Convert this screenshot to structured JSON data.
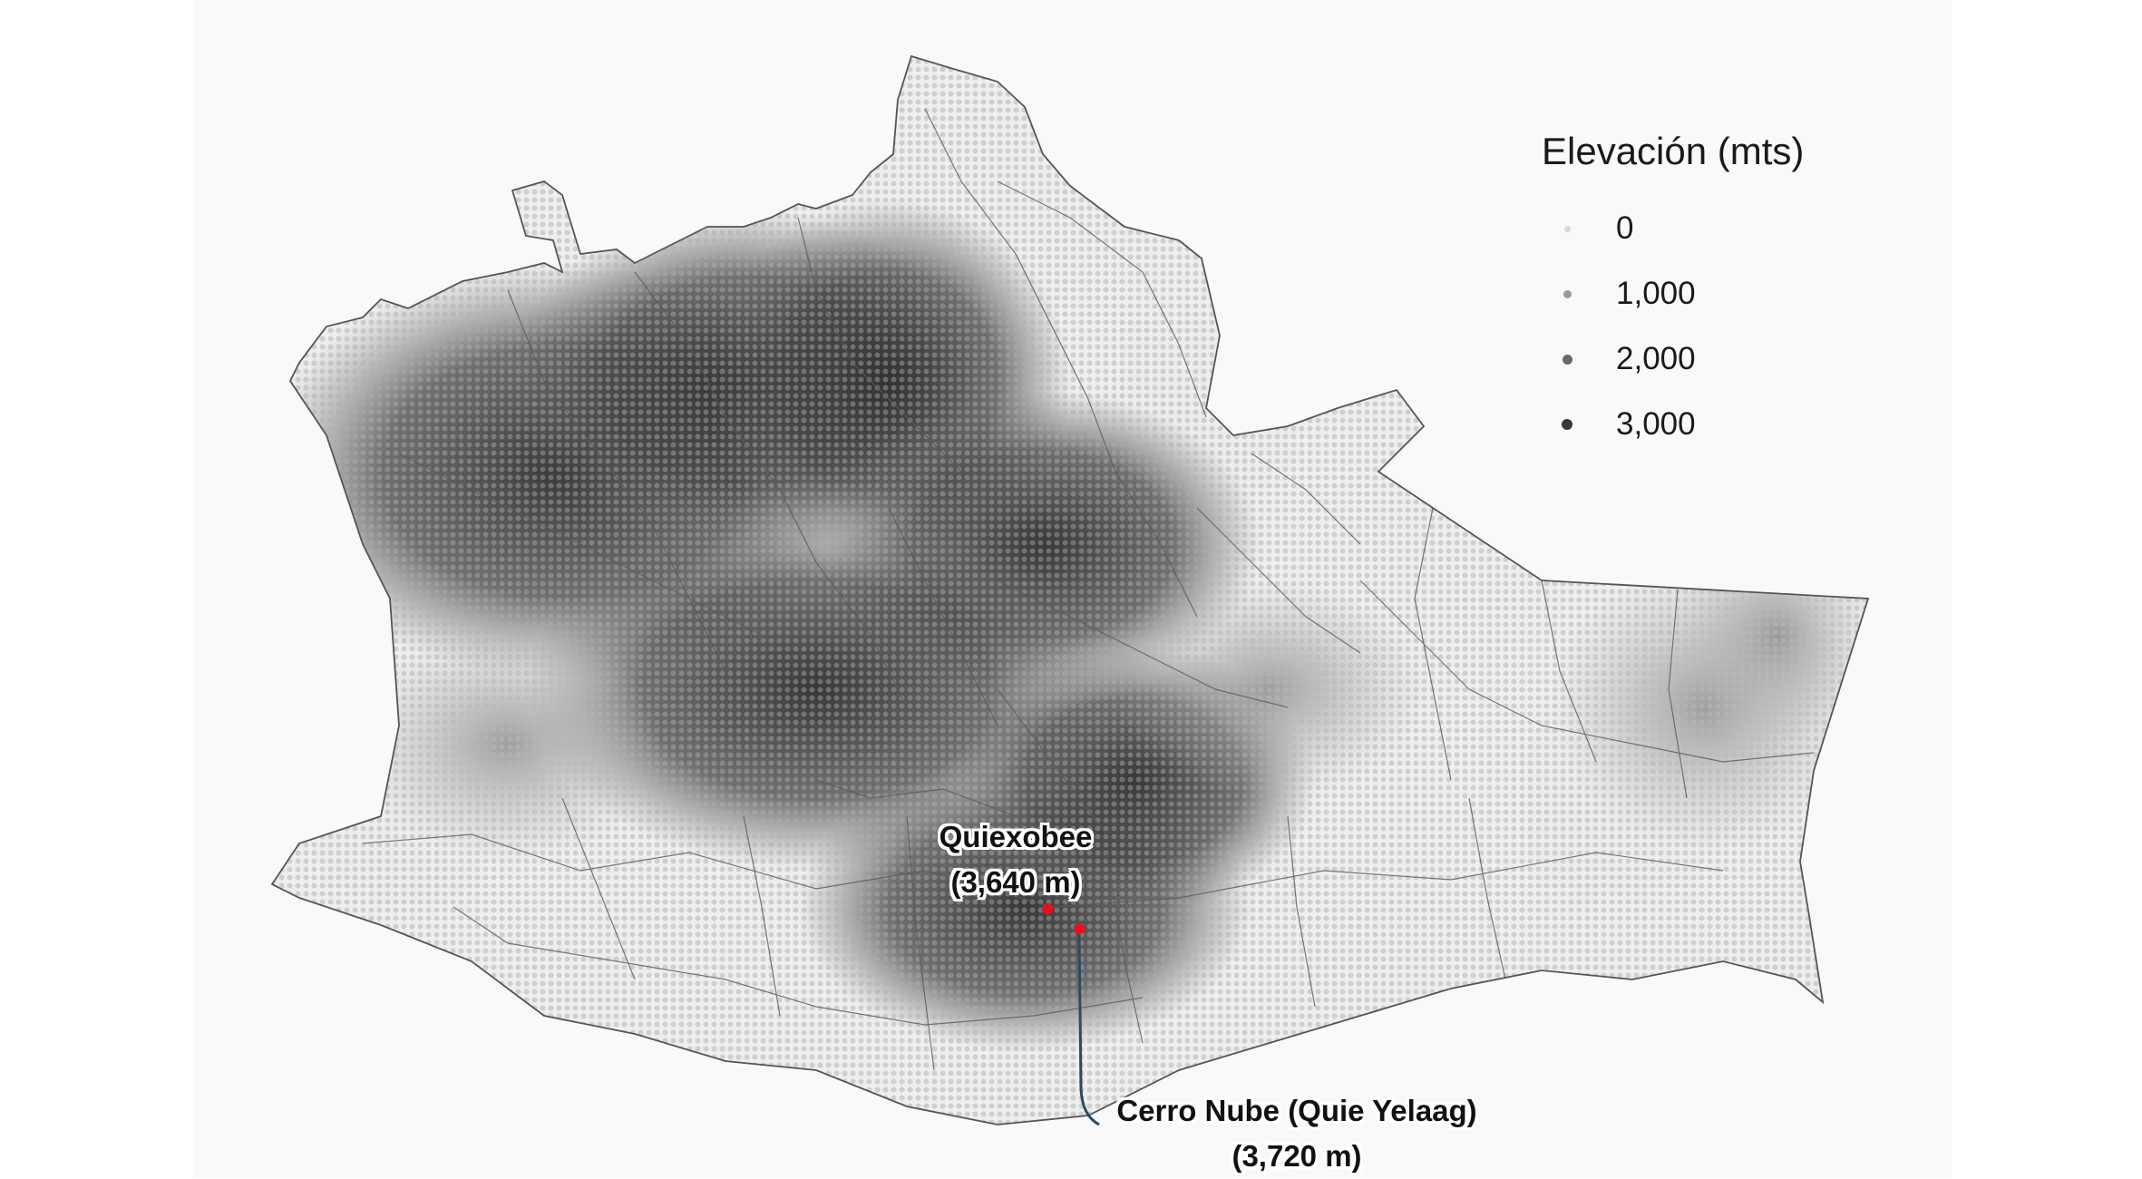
{
  "legend": {
    "title": "Elevación (mts)",
    "items": [
      {
        "label": "0",
        "color": "#d9d9d9"
      },
      {
        "label": "1,000",
        "color": "#9a9a9a"
      },
      {
        "label": "2,000",
        "color": "#6a6a6a"
      },
      {
        "label": "3,000",
        "color": "#3a3a3a"
      }
    ]
  },
  "peaks": [
    {
      "name": "Quiexobee",
      "elevation": "(3,640 m)",
      "marker_color": "#e8101a"
    },
    {
      "name": "Cerro Nube (Quie Yelaag)",
      "elevation": "(3,720 m)",
      "marker_color": "#e8101a"
    }
  ],
  "colors": {
    "background": "#f9f9f9",
    "low_elevation": "#d9d9d9",
    "high_elevation": "#2f2f2f",
    "boundaries": "#555555",
    "leader_line": "#2e4a5e"
  }
}
